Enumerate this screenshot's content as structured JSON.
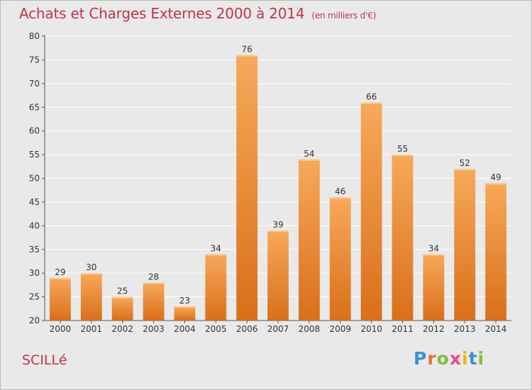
{
  "header": {
    "title": "Achats et Charges Externes 2000 à 2014",
    "subtitle": "(en milliers d'€)"
  },
  "footer": {
    "commune": "SCILLé",
    "logo_letters": [
      "P",
      "r",
      "o",
      "x",
      "i",
      "t",
      "i"
    ],
    "logo_colors": [
      "#3d8fd6",
      "#e8732a",
      "#7fbf3f",
      "#e84a8a",
      "#f2b800",
      "#3d8fd6",
      "#7fbf3f"
    ]
  },
  "colors": {
    "title": "#c0344e",
    "bar_light": "#f7a95a",
    "bar_dark": "#d96f1a",
    "grid": "#ffffff",
    "axis": "#555555",
    "background": "#e9e9e9"
  },
  "chart_data": {
    "type": "bar",
    "title": "Achats et Charges Externes 2000 à 2014",
    "subtitle": "(en milliers d'€)",
    "xlabel": "",
    "ylabel": "",
    "ylim": [
      20,
      80
    ],
    "yticks": [
      20,
      25,
      30,
      35,
      40,
      45,
      50,
      55,
      60,
      65,
      70,
      75,
      80
    ],
    "grid": true,
    "categories": [
      "2000",
      "2001",
      "2002",
      "2003",
      "2004",
      "2005",
      "2006",
      "2007",
      "2008",
      "2009",
      "2010",
      "2011",
      "2012",
      "2013",
      "2014"
    ],
    "values": [
      29,
      30,
      25,
      28,
      23,
      34,
      76,
      39,
      54,
      46,
      66,
      55,
      34,
      52,
      49
    ]
  }
}
